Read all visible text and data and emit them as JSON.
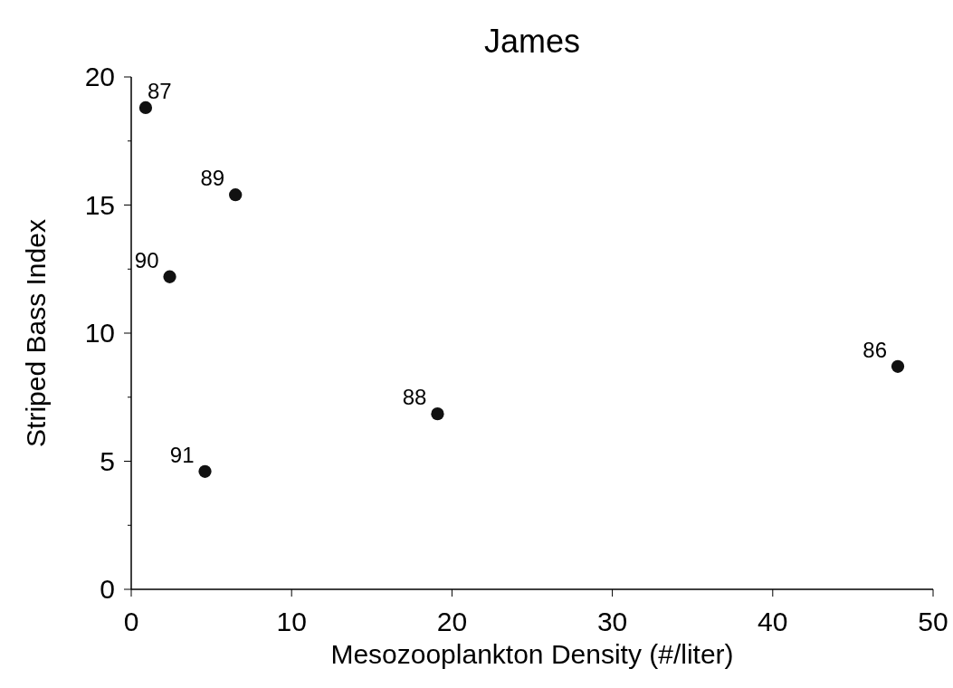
{
  "chart_data": {
    "type": "scatter",
    "title": "James",
    "xlabel": "Mesozooplankton Density (#/liter)",
    "ylabel": "Striped Bass Index",
    "x": [
      47.8,
      0.9,
      19.1,
      6.5,
      2.4,
      4.6
    ],
    "values": [
      8.7,
      18.8,
      6.85,
      15.4,
      12.2,
      4.6
    ],
    "color": "#111111",
    "marker": "circle",
    "grid": false,
    "xlim": [
      0,
      50
    ],
    "xticks": [
      0,
      10,
      20,
      30,
      40,
      50
    ],
    "ylim": [
      0,
      20
    ],
    "yticks": [
      0,
      {
        "value": 2.5,
        "label": null
      },
      5,
      {
        "value": 7.5,
        "label": null
      },
      10,
      {
        "value": 12.5,
        "label": null
      },
      15,
      {
        "value": 17.5,
        "label": null
      },
      20
    ],
    "annotations": [
      {
        "text": "86",
        "x": 47.8,
        "y": 8.7
      },
      {
        "text": "87",
        "x": 0.9,
        "y": 18.8
      },
      {
        "text": "88",
        "x": 19.1,
        "y": 6.85
      },
      {
        "text": "89",
        "x": 6.5,
        "y": 15.4
      },
      {
        "text": "90",
        "x": 2.4,
        "y": 12.2
      },
      {
        "text": "91",
        "x": 4.6,
        "y": 4.6
      }
    ]
  }
}
